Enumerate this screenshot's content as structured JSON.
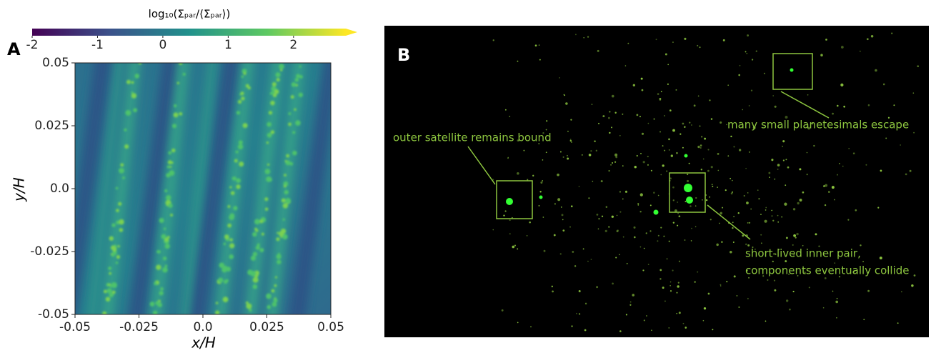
{
  "chart_data": [
    {
      "type": "heatmap",
      "panel": "A",
      "colorbar_label": "log₁₀(Σₚₐᵣ/⟨Σₚₐᵣ⟩)",
      "colormap": "viridis",
      "clim": [
        -2,
        2.8
      ],
      "cticks": [
        -2,
        -1,
        0,
        1,
        2
      ],
      "xlabel": "x/H",
      "ylabel": "y/H",
      "xlim": [
        -0.05,
        0.05
      ],
      "ylim": [
        -0.05,
        0.05
      ],
      "xticks": [
        -0.05,
        -0.025,
        {
          "value": 0,
          "label": "0.0"
        },
        0.025,
        0.05
      ],
      "yticks": [
        -0.05,
        -0.025,
        {
          "value": 0,
          "label": "0.0"
        },
        0.025,
        0.05
      ]
    },
    {
      "type": "image",
      "panel": "B",
      "color": "#8dc63f",
      "annotations": [
        "outer satellite remains bound",
        "many small planetesimals escape",
        "short-lived inner pair,",
        "components eventually collide"
      ]
    }
  ]
}
